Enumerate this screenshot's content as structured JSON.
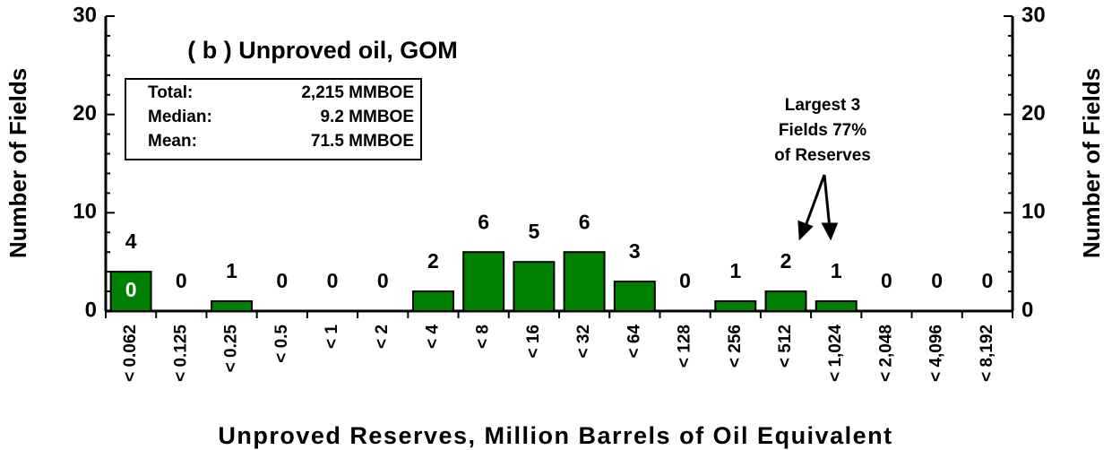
{
  "chart_data": {
    "type": "bar",
    "subtitle": "( b )  Unproved oil, GOM",
    "stats": [
      {
        "label": "Total:",
        "value": "2,215 MMBOE"
      },
      {
        "label": "Median:",
        "value": "9.2 MMBOE"
      },
      {
        "label": "Mean:",
        "value": "71.5 MMBOE"
      }
    ],
    "annotation": [
      "Largest 3",
      "Fields 77%",
      "of Reserves"
    ],
    "first_bar_inner_label": "0",
    "xlabel": "Unproved Reserves, Million Barrels of Oil Equivalent",
    "ylabel": "Number of Fields",
    "y2label": "Number of Fields",
    "categories": [
      "< 0.062",
      "< 0.125",
      "< 0.25",
      "< 0.5",
      "< 1",
      "< 2",
      "< 4",
      "< 8",
      "< 16",
      "< 32",
      "< 64",
      "< 128",
      "< 256",
      "< 512",
      "< 1,024",
      "< 2,048",
      "< 4,096",
      "< 8,192"
    ],
    "values": [
      4,
      0,
      1,
      0,
      0,
      0,
      2,
      6,
      5,
      6,
      3,
      0,
      1,
      2,
      1,
      0,
      0,
      0
    ],
    "color": "#008000",
    "ylim": [
      0,
      30
    ],
    "yticks": [
      0,
      10,
      20,
      30
    ],
    "yminorticks": [
      2,
      4,
      6,
      8,
      12,
      14,
      16,
      18,
      22,
      24,
      26,
      28
    ],
    "y2lim": [
      0,
      30
    ],
    "y2ticks": [
      0,
      10,
      20,
      30
    ]
  }
}
